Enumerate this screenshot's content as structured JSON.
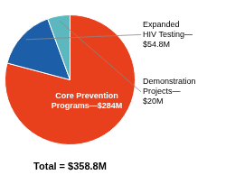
{
  "chart_data": {
    "type": "pie",
    "values": [
      284.0,
      54.8,
      20.0
    ],
    "value_labels": [
      "Core Prevention\nPrograms—$284M",
      "Expanded\nHIV Testing—\n$54.8M",
      "Demonstration\nProjects—\n$20M"
    ],
    "colors": [
      "#E8401C",
      "#1C5FA8",
      "#5CB8BE"
    ],
    "data_labels": true,
    "annotations": [
      "Total = $358.8M"
    ]
  }
}
